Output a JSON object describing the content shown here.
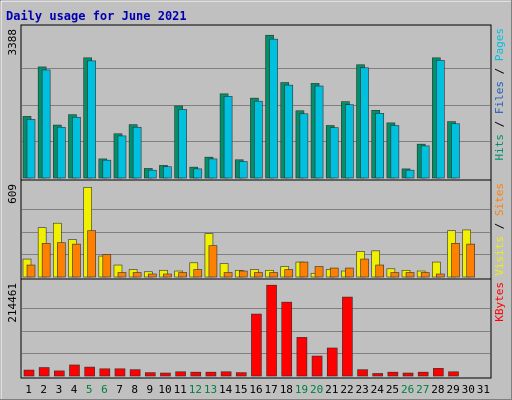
{
  "chart_data": {
    "type": "bar",
    "title": "Daily usage for June 2021",
    "categories": [
      "1",
      "2",
      "3",
      "4",
      "5",
      "6",
      "7",
      "8",
      "9",
      "10",
      "11",
      "12",
      "13",
      "14",
      "15",
      "16",
      "17",
      "18",
      "19",
      "20",
      "21",
      "22",
      "23",
      "24",
      "25",
      "26",
      "27",
      "28",
      "29",
      "30",
      "31"
    ],
    "weekend_days": [
      "5",
      "6",
      "12",
      "13",
      "19",
      "20",
      "26",
      "27"
    ],
    "grid": true,
    "panels": [
      {
        "id": "hits-files-pages",
        "max_label": "3388",
        "ymax": 3388,
        "legend": [
          {
            "text": "Pages",
            "color": "#00c0e0"
          },
          {
            "text": "Files",
            "color": "#2060c0"
          },
          {
            "text": "Hits",
            "color": "#00906a"
          }
        ],
        "series": [
          {
            "name": "Hits",
            "color": "#00906a",
            "values": [
              1420,
              2560,
              1220,
              1460,
              2770,
              440,
              1020,
              1230,
              220,
              290,
              1660,
              250,
              480,
              1940,
              420,
              1840,
              3290,
              2200,
              1550,
              2180,
              1210,
              1760,
              2610,
              1560,
              1270,
              210,
              780,
              2770,
              1300,
              null,
              null
            ]
          },
          {
            "name": "Files",
            "color": "#2060c0",
            "values": [
              900,
              1600,
              800,
              950,
              1400,
              300,
              700,
              800,
              150,
              200,
              1000,
              180,
              330,
              1200,
              300,
              1100,
              1800,
              1500,
              1000,
              1300,
              800,
              1700,
              1600,
              900,
              800,
              150,
              500,
              1400,
              900,
              null,
              null
            ]
          },
          {
            "name": "Pages",
            "color": "#00c0e0",
            "values": [
              1350,
              2490,
              1170,
              1400,
              2700,
              410,
              970,
              1170,
              180,
              260,
              1580,
              210,
              440,
              1880,
              380,
              1770,
              3200,
              2140,
              1480,
              2120,
              1160,
              1690,
              2540,
              1490,
              1210,
              180,
              740,
              2710,
              1250,
              null,
              null
            ]
          }
        ]
      },
      {
        "id": "visits-sites",
        "max_label": "609",
        "ymax": 609,
        "legend": [
          {
            "text": "Sites",
            "color": "#ff8000"
          },
          {
            "text": "Visits",
            "color": "#f0f000"
          }
        ],
        "series": [
          {
            "name": "Visits",
            "color": "#f0f000",
            "values": [
              120,
              330,
              360,
              250,
              600,
              140,
              80,
              50,
              35,
              45,
              40,
              95,
              290,
              90,
              45,
              50,
              45,
              70,
              100,
              25,
              50,
              40,
              170,
              175,
              55,
              45,
              40,
              100,
              310,
              315,
              null
            ]
          },
          {
            "name": "Sites",
            "color": "#ff8000",
            "values": [
              80,
              225,
              230,
              220,
              310,
              150,
              30,
              30,
              20,
              20,
              30,
              50,
              210,
              30,
              40,
              30,
              30,
              50,
              100,
              70,
              60,
              60,
              120,
              80,
              30,
              30,
              30,
              20,
              225,
              220,
              null
            ]
          }
        ]
      },
      {
        "id": "kbytes",
        "max_label": "214461",
        "ymax": 214461,
        "legend": [
          {
            "text": "KBytes",
            "color": "#ff0000"
          }
        ],
        "series": [
          {
            "name": "KBytes",
            "color": "#ff0000",
            "values": [
              14000,
              20000,
              12000,
              26000,
              21000,
              17000,
              17000,
              15000,
              8000,
              7000,
              10000,
              9000,
              9000,
              10000,
              8000,
              146000,
              214000,
              174000,
              91000,
              47000,
              66000,
              186000,
              15000,
              6000,
              9000,
              7000,
              9000,
              18000,
              10000,
              null,
              null
            ]
          }
        ]
      }
    ]
  }
}
